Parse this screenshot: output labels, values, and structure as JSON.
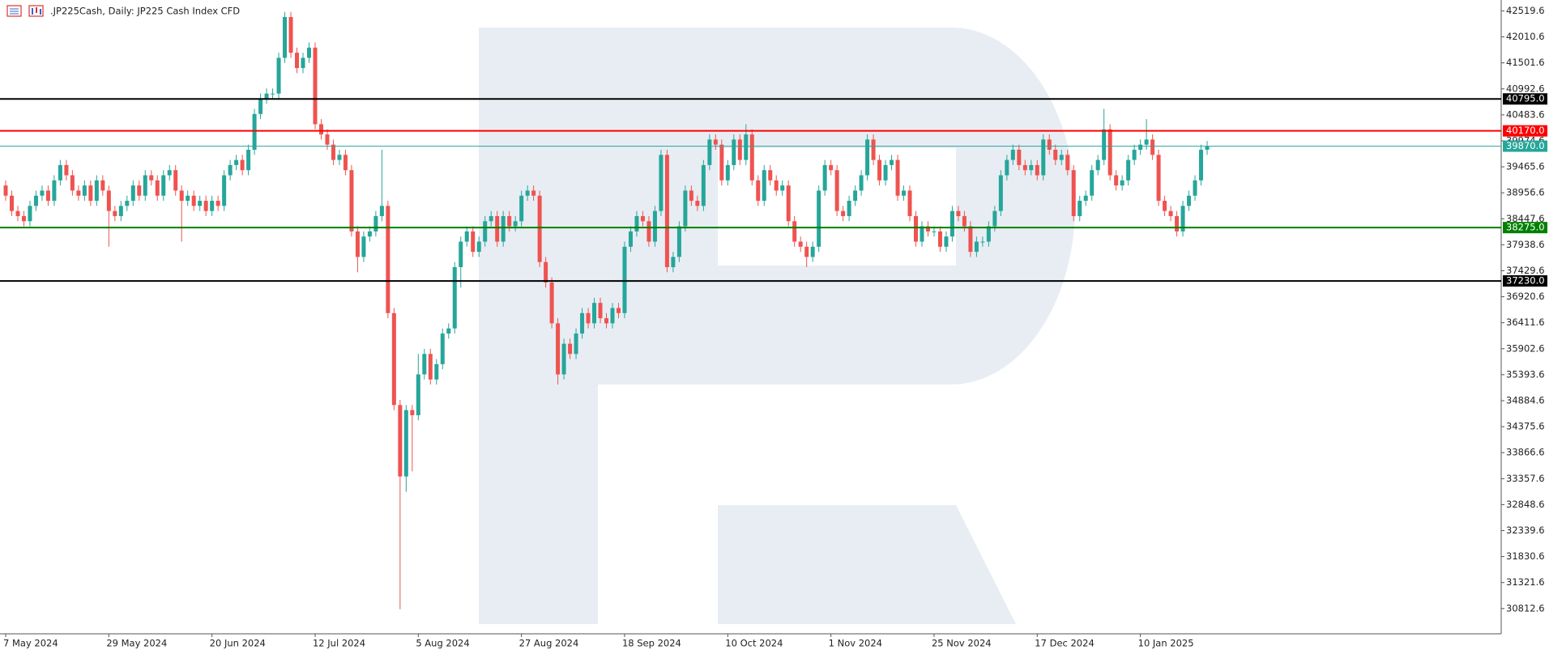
{
  "chart_data": {
    "type": "candlestick",
    "title": ".JP225Cash, Daily:  JP225 Cash Index CFD",
    "categories": [
      "7 May 2024",
      null,
      null,
      null,
      null,
      null,
      null,
      null,
      null,
      null,
      null,
      null,
      null,
      null,
      null,
      null,
      null,
      "29 May 2024",
      null,
      null,
      null,
      null,
      null,
      null,
      null,
      null,
      null,
      null,
      null,
      null,
      null,
      null,
      null,
      null,
      "20 Jun 2024",
      null,
      null,
      null,
      null,
      null,
      null,
      null,
      null,
      null,
      null,
      null,
      null,
      null,
      null,
      null,
      null,
      "12 Jul 2024",
      null,
      null,
      null,
      null,
      null,
      null,
      null,
      null,
      null,
      null,
      null,
      null,
      null,
      null,
      null,
      null,
      "5 Aug 2024",
      null,
      null,
      null,
      null,
      null,
      null,
      null,
      null,
      null,
      null,
      null,
      null,
      null,
      null,
      null,
      null,
      "27 Aug 2024",
      null,
      null,
      null,
      null,
      null,
      null,
      null,
      null,
      null,
      null,
      null,
      null,
      null,
      null,
      null,
      null,
      "18 Sep 2024",
      null,
      null,
      null,
      null,
      null,
      null,
      null,
      null,
      null,
      null,
      null,
      null,
      null,
      null,
      null,
      null,
      "10 Oct 2024",
      null,
      null,
      null,
      null,
      null,
      null,
      null,
      null,
      null,
      null,
      null,
      null,
      null,
      null,
      null,
      null,
      "1 Nov 2024",
      null,
      null,
      null,
      null,
      null,
      null,
      null,
      null,
      null,
      null,
      null,
      null,
      null,
      null,
      null,
      null,
      "25 Nov 2024",
      null,
      null,
      null,
      null,
      null,
      null,
      null,
      null,
      null,
      null,
      null,
      null,
      null,
      null,
      null,
      null,
      "17 Dec 2024",
      null,
      null,
      null,
      null,
      null,
      null,
      null,
      null,
      null,
      null,
      null,
      null,
      null,
      null,
      null,
      null,
      "10 Jan 2025",
      null,
      null,
      null,
      null,
      null,
      null,
      null,
      null,
      null,
      null,
      null
    ],
    "open": [
      39100,
      38900,
      38600,
      38500,
      38400,
      38700,
      38900,
      39000,
      38800,
      39200,
      39500,
      39300,
      39000,
      38900,
      39100,
      38800,
      39200,
      39000,
      38600,
      38500,
      38700,
      38800,
      39100,
      38900,
      39300,
      39200,
      38900,
      39300,
      39400,
      39000,
      38800,
      38900,
      38700,
      38800,
      38600,
      38800,
      38700,
      39300,
      39500,
      39600,
      39400,
      39800,
      40500,
      40800,
      40900,
      40900,
      41600,
      42400,
      41700,
      41400,
      41600,
      41800,
      40300,
      40100,
      39900,
      39600,
      39700,
      39400,
      38200,
      37700,
      38100,
      38200,
      38500,
      38700,
      36600,
      34800,
      33400,
      34700,
      34600,
      35400,
      35800,
      35300,
      35600,
      36200,
      36300,
      37500,
      38000,
      38200,
      37800,
      38000,
      38400,
      38500,
      38000,
      38500,
      38300,
      38400,
      38900,
      39000,
      38900,
      37600,
      37200,
      36400,
      35400,
      36000,
      35800,
      36200,
      36600,
      36400,
      36800,
      36500,
      36400,
      36700,
      36600,
      37900,
      38200,
      38500,
      38400,
      38000,
      38600,
      39700,
      37500,
      37700,
      38300,
      39000,
      38800,
      38700,
      39500,
      40000,
      39900,
      39200,
      39500,
      40000,
      39600,
      40100,
      39200,
      38800,
      39400,
      39200,
      39000,
      39100,
      38400,
      38000,
      37900,
      37700,
      37900,
      39000,
      39500,
      39400,
      38600,
      38500,
      38800,
      39000,
      39300,
      40000,
      39600,
      39200,
      39500,
      39600,
      38900,
      39000,
      38500,
      38000,
      38300,
      38200,
      38200,
      37900,
      38100,
      38600,
      38500,
      38300,
      37800,
      38000,
      38000,
      38300,
      38600,
      39300,
      39600,
      39800,
      39500,
      39400,
      39500,
      39300,
      40000,
      39800,
      39600,
      39700,
      39400,
      38500,
      38800,
      38900,
      39400,
      39600,
      40200,
      39300,
      39100,
      39200,
      39600,
      39800,
      39900,
      40000,
      39700,
      38800,
      38600,
      38500,
      38200,
      38700,
      38900,
      39200,
      39800
    ],
    "high": [
      39200,
      39000,
      38700,
      38600,
      38800,
      39000,
      39100,
      39100,
      39300,
      39600,
      39600,
      39400,
      39100,
      39200,
      39200,
      39300,
      39300,
      39100,
      38700,
      38800,
      38900,
      39200,
      39200,
      39400,
      39400,
      39300,
      39400,
      39500,
      39500,
      39100,
      39000,
      39000,
      38900,
      38900,
      38900,
      38900,
      39400,
      39600,
      39700,
      39700,
      39900,
      40600,
      40900,
      41000,
      41000,
      41700,
      42500,
      42500,
      41800,
      41700,
      41900,
      41900,
      40400,
      40200,
      40000,
      39800,
      39800,
      39500,
      38300,
      38200,
      38300,
      38600,
      39800,
      38800,
      36700,
      34900,
      34800,
      34800,
      35800,
      35900,
      35900,
      35700,
      36300,
      36400,
      37600,
      38100,
      38300,
      38300,
      38100,
      38500,
      38600,
      38600,
      38600,
      38600,
      38500,
      39000,
      39100,
      39100,
      39000,
      37700,
      37300,
      36500,
      36100,
      36100,
      36300,
      36700,
      36700,
      36900,
      36900,
      36600,
      36800,
      36800,
      38000,
      38300,
      38600,
      38600,
      38500,
      38700,
      39800,
      39800,
      37800,
      38400,
      39100,
      39100,
      38900,
      39600,
      40100,
      40100,
      40000,
      39600,
      40100,
      40100,
      40300,
      40200,
      39300,
      39500,
      39500,
      39300,
      39200,
      39200,
      38500,
      38100,
      38000,
      38000,
      39100,
      39600,
      39600,
      39500,
      38700,
      38900,
      39100,
      39400,
      40100,
      40100,
      39700,
      39600,
      39700,
      39700,
      39100,
      39100,
      38600,
      38400,
      38400,
      38300,
      38300,
      38200,
      38700,
      38700,
      38600,
      38400,
      38100,
      38100,
      38400,
      38700,
      39400,
      39700,
      39900,
      39900,
      39600,
      39600,
      39600,
      40100,
      40100,
      39900,
      39800,
      39800,
      39500,
      38900,
      39000,
      39500,
      39700,
      40600,
      40300,
      39400,
      39300,
      39700,
      39900,
      40000,
      40400,
      40100,
      39800,
      38900,
      38700,
      38600,
      38800,
      39000,
      39300,
      39900,
      39970
    ],
    "low": [
      38800,
      38500,
      38400,
      38300,
      38300,
      38600,
      38800,
      38700,
      38700,
      39100,
      39200,
      38900,
      38800,
      38800,
      38700,
      38700,
      38900,
      37900,
      38400,
      38400,
      38600,
      38700,
      38800,
      38800,
      39100,
      38800,
      38800,
      39200,
      38900,
      38000,
      38700,
      38600,
      38600,
      38500,
      38500,
      38600,
      38600,
      39200,
      39400,
      39300,
      39300,
      39700,
      40400,
      40700,
      40800,
      40800,
      41500,
      41600,
      41300,
      41300,
      41500,
      40200,
      40000,
      39800,
      39500,
      39500,
      39300,
      38100,
      37400,
      37600,
      38000,
      38100,
      38400,
      36500,
      34700,
      30800,
      33100,
      33500,
      34500,
      35300,
      35200,
      35200,
      35500,
      36100,
      36200,
      37100,
      37900,
      37700,
      37700,
      37900,
      38300,
      37900,
      37900,
      38200,
      38200,
      38300,
      38800,
      38800,
      37500,
      37100,
      36300,
      35200,
      35300,
      35700,
      35700,
      36100,
      36300,
      36300,
      36400,
      36300,
      36300,
      36500,
      36500,
      37800,
      38100,
      38300,
      37900,
      37900,
      38500,
      37400,
      37400,
      37600,
      38200,
      38700,
      38600,
      38600,
      39400,
      39800,
      39100,
      39100,
      39400,
      39500,
      39500,
      39100,
      38700,
      38700,
      39100,
      38900,
      38900,
      38300,
      37900,
      37800,
      37500,
      37600,
      37800,
      38900,
      39300,
      38500,
      38400,
      38400,
      38700,
      38900,
      39200,
      39500,
      39100,
      39100,
      39400,
      38800,
      38800,
      38400,
      37900,
      37900,
      38100,
      38100,
      37800,
      37800,
      38000,
      38400,
      38200,
      37700,
      37700,
      37900,
      37900,
      38200,
      38500,
      39200,
      39500,
      39400,
      39300,
      39300,
      39200,
      39200,
      39700,
      39500,
      39500,
      39300,
      38400,
      38400,
      38700,
      38800,
      39300,
      39500,
      39200,
      39000,
      39000,
      39100,
      39500,
      39700,
      39800,
      39600,
      38700,
      38500,
      38400,
      38100,
      38100,
      38600,
      38800,
      39100,
      39700
    ],
    "close": [
      38900,
      38600,
      38500,
      38400,
      38700,
      38900,
      39000,
      38800,
      39200,
      39500,
      39300,
      39000,
      38900,
      39100,
      38800,
      39200,
      39000,
      38600,
      38500,
      38700,
      38800,
      39100,
      38900,
      39300,
      39200,
      38900,
      39300,
      39400,
      39000,
      38800,
      38900,
      38700,
      38800,
      38600,
      38800,
      38700,
      39300,
      39500,
      39600,
      39400,
      39800,
      40500,
      40800,
      40900,
      40900,
      41600,
      42400,
      41700,
      41400,
      41600,
      41800,
      40300,
      40100,
      39900,
      39600,
      39700,
      39400,
      38200,
      37700,
      38100,
      38200,
      38500,
      38700,
      36600,
      34800,
      33400,
      34700,
      34600,
      35400,
      35800,
      35300,
      35600,
      36200,
      36300,
      37500,
      38000,
      38200,
      37800,
      38000,
      38400,
      38500,
      38000,
      38500,
      38300,
      38400,
      38900,
      39000,
      38900,
      37600,
      37200,
      36400,
      35400,
      36000,
      35800,
      36200,
      36600,
      36400,
      36800,
      36500,
      36400,
      36700,
      36600,
      37900,
      38200,
      38500,
      38400,
      38000,
      38600,
      39700,
      37500,
      37700,
      38300,
      39000,
      38800,
      38700,
      39500,
      40000,
      39900,
      39200,
      39500,
      40000,
      39600,
      40100,
      39200,
      38800,
      39400,
      39200,
      39000,
      39100,
      38400,
      38000,
      37900,
      37700,
      37900,
      39000,
      39500,
      39400,
      38600,
      38500,
      38800,
      39000,
      39300,
      40000,
      39600,
      39200,
      39500,
      39600,
      38900,
      39000,
      38500,
      38000,
      38300,
      38200,
      38200,
      37900,
      38100,
      38600,
      38500,
      38300,
      37800,
      38000,
      38000,
      38300,
      38600,
      39300,
      39600,
      39800,
      39500,
      39400,
      39500,
      39300,
      40000,
      39800,
      39600,
      39700,
      39400,
      38500,
      38800,
      38900,
      39400,
      39600,
      40200,
      39300,
      39100,
      39200,
      39600,
      39800,
      39900,
      40000,
      39700,
      38800,
      38600,
      38500,
      38200,
      38700,
      38900,
      39200,
      39800,
      39870
    ],
    "up_color": "#26a69a",
    "down_color": "#ef5350",
    "ylim": [
      30318,
      42733
    ],
    "yticks": [
      42519.6,
      42010.6,
      41501.6,
      40992.6,
      40483.6,
      39974.6,
      39465.6,
      38956.6,
      38447.6,
      37938.6,
      37429.6,
      36920.6,
      36411.6,
      35902.6,
      35393.6,
      34884.6,
      34375.6,
      33866.6,
      33357.6,
      32848.6,
      32339.6,
      31830.6,
      31321.6,
      30812.6
    ],
    "levels": [
      {
        "value": 40795,
        "label": "40795.0",
        "color": "#000000"
      },
      {
        "value": 40170,
        "label": "40170.0",
        "color": "#ff0000"
      },
      {
        "value": 39870,
        "label": "39870.0",
        "color": "#26a69a"
      },
      {
        "value": 38275,
        "label": "38275.0",
        "color": "#008000"
      },
      {
        "value": 37230,
        "label": "37230.0",
        "color": "#000000"
      }
    ]
  }
}
